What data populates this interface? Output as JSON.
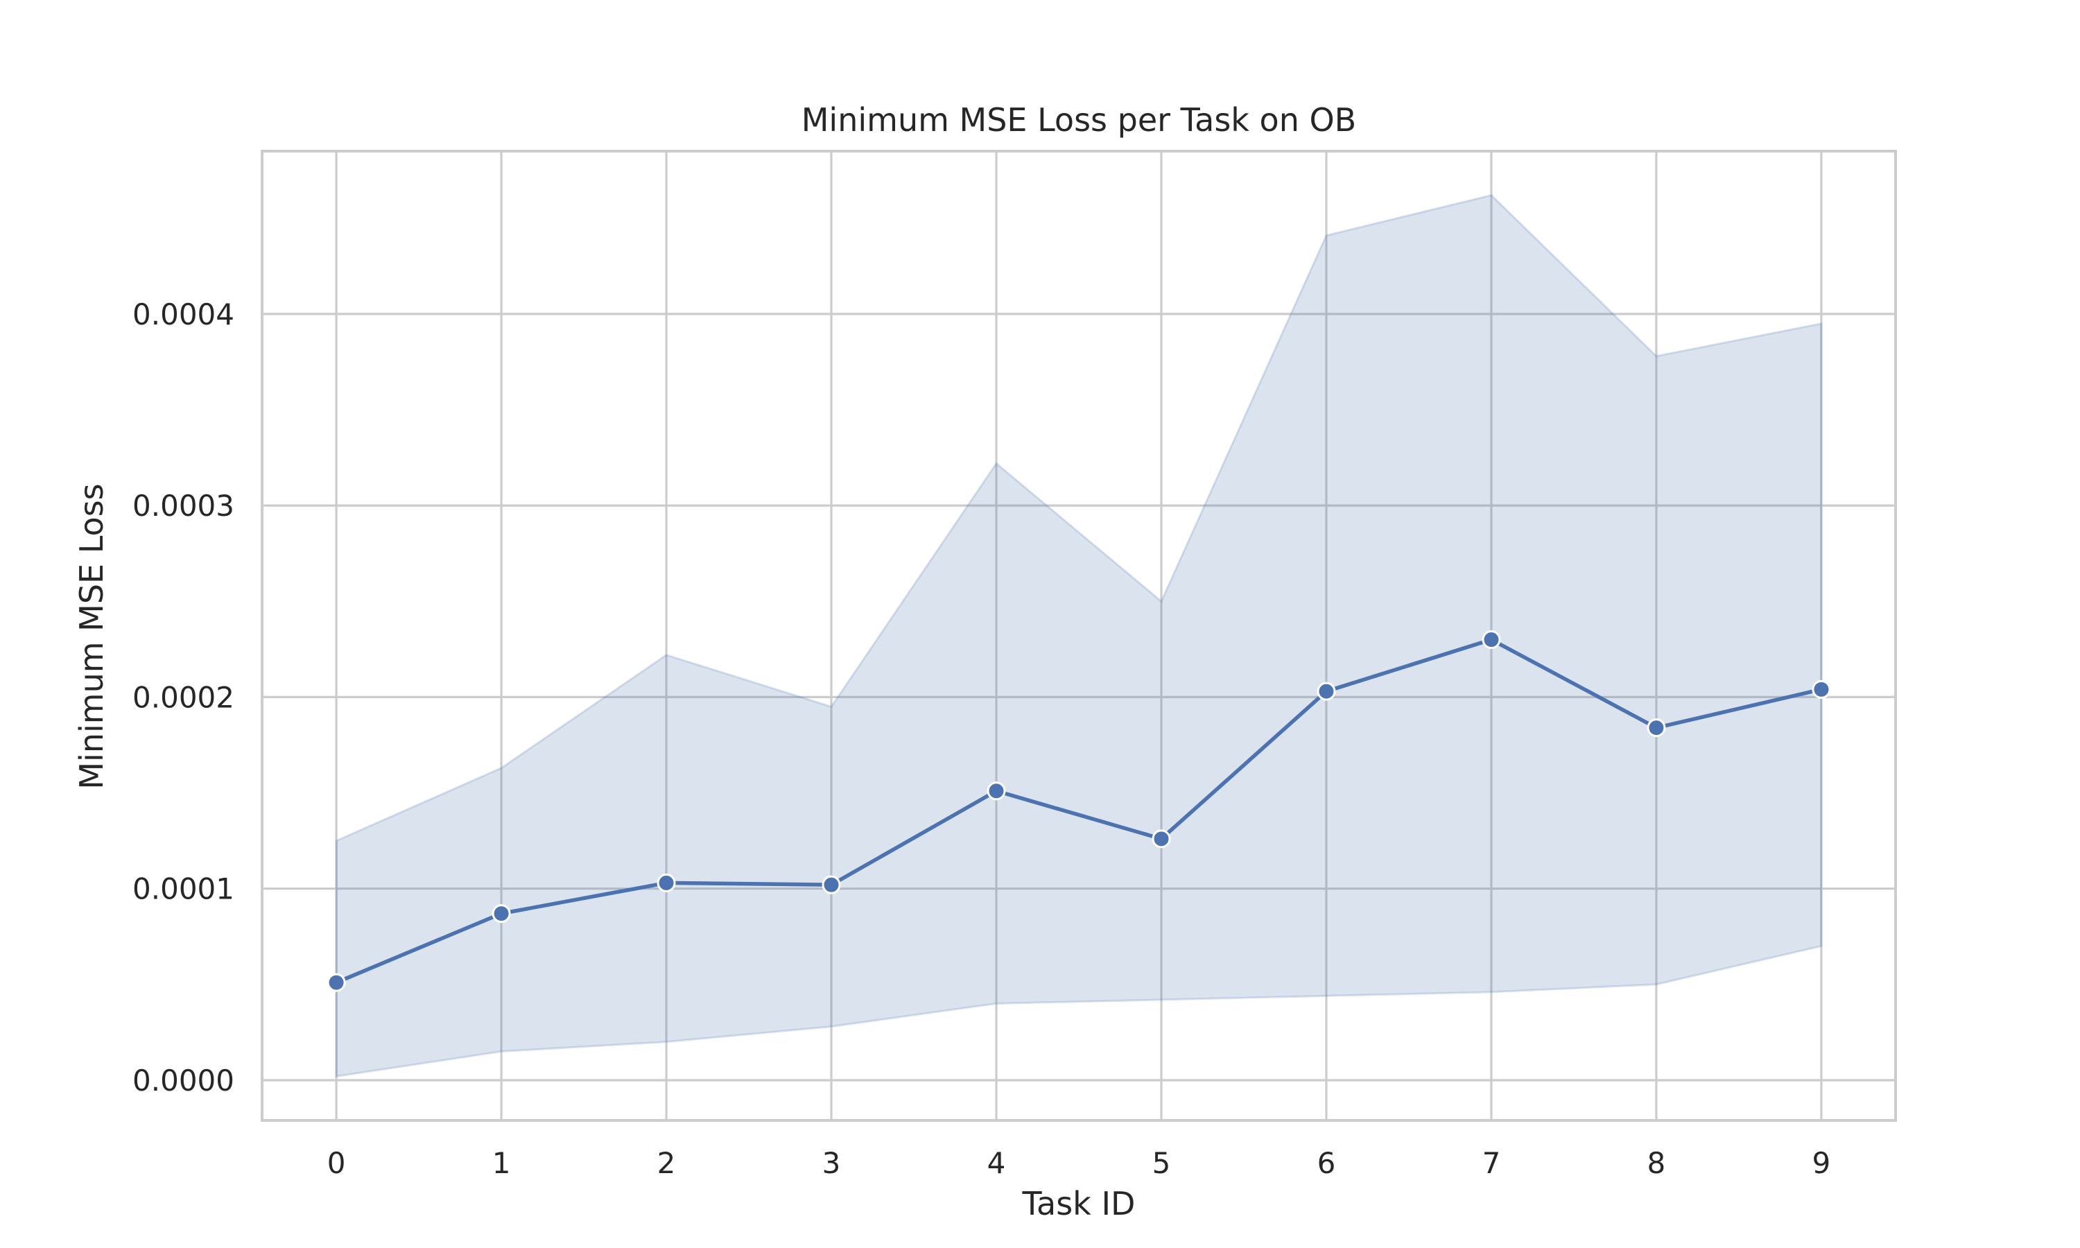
{
  "chart_data": {
    "type": "line",
    "title": "Minimum MSE Loss per Task on OB",
    "xlabel": "Task ID",
    "ylabel": "Minimum MSE Loss",
    "x": [
      0,
      1,
      2,
      3,
      4,
      5,
      6,
      7,
      8,
      9
    ],
    "x_ticks": [
      "0",
      "1",
      "2",
      "3",
      "4",
      "5",
      "6",
      "7",
      "8",
      "9"
    ],
    "y_ticks": [
      0,
      0.0001,
      0.0002,
      0.0003,
      0.0004
    ],
    "y_tick_labels": [
      "0.0000",
      "0.0001",
      "0.0002",
      "0.0003",
      "0.0004"
    ],
    "xlim": [
      -0.45,
      9.45
    ],
    "ylim": [
      -2.1e-05,
      0.000485
    ],
    "grid": true,
    "series": [
      {
        "values": [
          5.1e-05,
          8.7e-05,
          0.000103,
          0.000102,
          0.000151,
          0.000126,
          0.000203,
          0.00023,
          0.000184,
          0.000204
        ],
        "ci_lower": [
          2e-06,
          1.5e-05,
          2e-05,
          2.8e-05,
          4e-05,
          4.2e-05,
          4.4e-05,
          4.6e-05,
          5e-05,
          7e-05
        ],
        "ci_upper": [
          0.000125,
          0.000163,
          0.000222,
          0.000195,
          0.000322,
          0.00025,
          0.000441,
          0.000462,
          0.000378,
          0.000395
        ],
        "color": "#4c72b0"
      }
    ],
    "colors": {
      "grid": "#cccccc",
      "frame": "#cccccc",
      "text": "#262626",
      "background": "#ffffff"
    }
  }
}
